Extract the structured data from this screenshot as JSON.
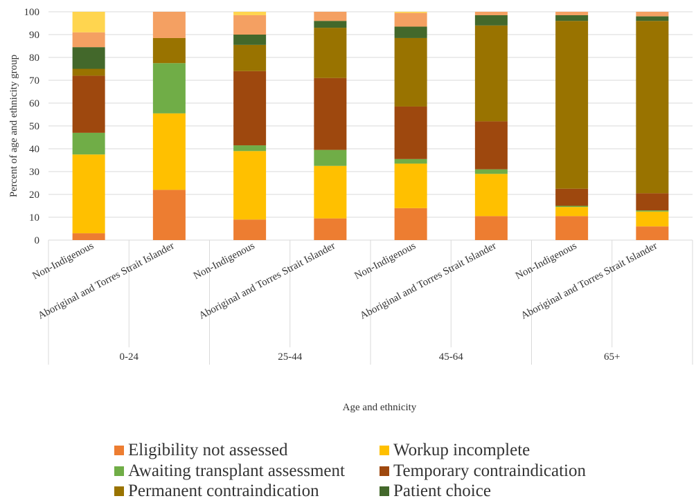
{
  "chart_data": {
    "type": "bar",
    "stacked": true,
    "title": "",
    "xlabel": "Age and ethnicity",
    "ylabel": "Percent of age and ethnicity group",
    "ylim": [
      0,
      100
    ],
    "yticks": [
      0,
      10,
      20,
      30,
      40,
      50,
      60,
      70,
      80,
      90,
      100
    ],
    "grid": true,
    "legend_position": "bottom",
    "groups": [
      {
        "label": "0-24",
        "categories": [
          "Non-Indigenous",
          "Aboriginal and Torres Strait Islander"
        ]
      },
      {
        "label": "25-44",
        "categories": [
          "Non-Indigenous",
          "Aboriginal and Torres Strait Islander"
        ]
      },
      {
        "label": "45-64",
        "categories": [
          "Non-Indigenous",
          "Aboriginal and Torres Strait Islander"
        ]
      },
      {
        "label": "65+",
        "categories": [
          "Non-Indigenous",
          "Aboriginal and Torres Strait Islander"
        ]
      }
    ],
    "categories": [
      "Non-Indigenous",
      "Aboriginal and Torres Strait Islander",
      "Non-Indigenous",
      "Aboriginal and Torres Strait Islander",
      "Non-Indigenous",
      "Aboriginal and Torres Strait Islander",
      "Non-Indigenous",
      "Aboriginal and Torres Strait Islander"
    ],
    "series": [
      {
        "name": "Eligibility not assessed",
        "color": "#ED7D31",
        "values": [
          3,
          22,
          9,
          9.5,
          14,
          10.5,
          10.5,
          6
        ]
      },
      {
        "name": "Workup incomplete",
        "color": "#FFC000",
        "values": [
          34.5,
          33.5,
          30,
          23,
          19.5,
          18.5,
          4,
          6.5
        ]
      },
      {
        "name": "Awaiting transplant assessment",
        "color": "#70AD47",
        "values": [
          9.5,
          22,
          2.5,
          7,
          2,
          2,
          0.5,
          0.5
        ]
      },
      {
        "name": "Temporary contraindication",
        "color": "#9E480E",
        "values": [
          25,
          0,
          32.5,
          31.5,
          23,
          21,
          7.5,
          7.5
        ]
      },
      {
        "name": "Permanent contraindication",
        "color": "#997300",
        "values": [
          3,
          11,
          11.5,
          22,
          30,
          42,
          73.5,
          75.5
        ]
      },
      {
        "name": "Patient choice",
        "color": "#43682B",
        "values": [
          9.5,
          0,
          4.5,
          3,
          5,
          4.5,
          2.5,
          2
        ]
      },
      {
        "name": "",
        "color": "#F4A062",
        "values": [
          6.5,
          11.5,
          8.5,
          4,
          6,
          1.5,
          1.5,
          2
        ]
      },
      {
        "name": "",
        "color": "#FFD54F",
        "values": [
          9,
          0,
          1.5,
          0,
          0.5,
          0,
          0,
          0
        ]
      }
    ]
  }
}
